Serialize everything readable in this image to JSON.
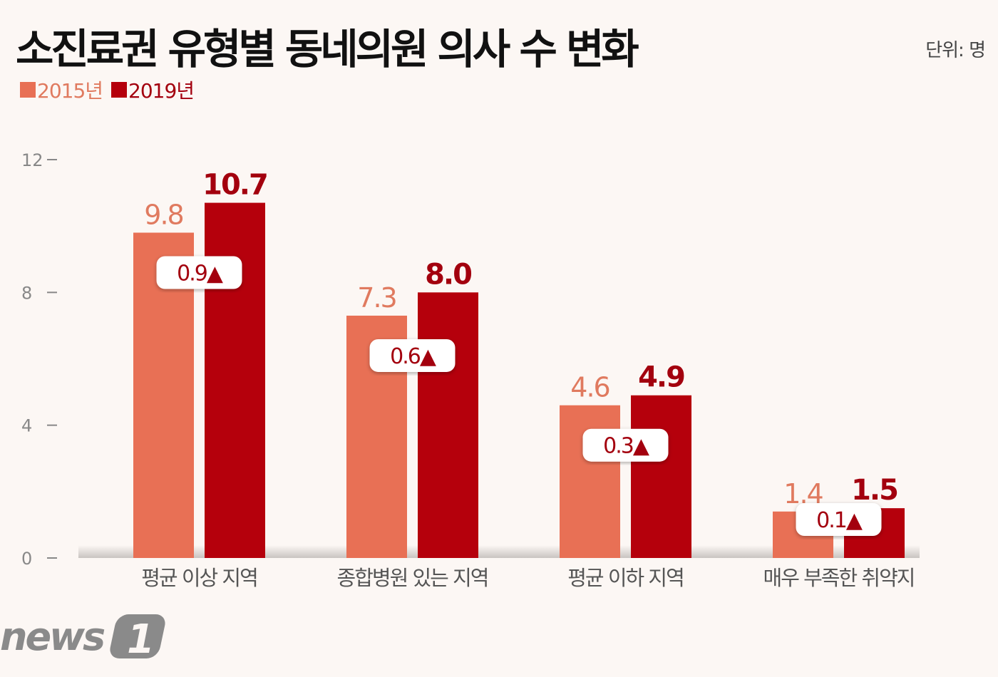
{
  "chart_data": {
    "type": "bar",
    "title": "소진료권 유형별 동네의원 의사 수 변화",
    "unit": "단위: 명",
    "categories": [
      "평균 이상 지역",
      "종합병원 있는 지역",
      "평균 이하 지역",
      "매우 부족한 취약지"
    ],
    "series": [
      {
        "name": "2015년",
        "values": [
          9.8,
          7.3,
          4.6,
          1.4
        ],
        "labels": [
          "9.8",
          "7.3",
          "4.6",
          "1.4"
        ],
        "color": "#e87055",
        "label_color": "#e07a5f"
      },
      {
        "name": "2019년",
        "values": [
          10.7,
          8.0,
          4.9,
          1.5
        ],
        "labels": [
          "10.7",
          "8.0",
          "4.9",
          "1.5"
        ],
        "color": "#b5000c",
        "label_color": "#a3000e"
      }
    ],
    "changes": [
      "0.9▲",
      "0.6▲",
      "0.3▲",
      "0.1▲"
    ],
    "yticks": [
      "0",
      "4",
      "8",
      "12"
    ],
    "ylim": [
      0,
      12
    ],
    "legend": "top-left",
    "grid": false
  },
  "logo": "news1"
}
